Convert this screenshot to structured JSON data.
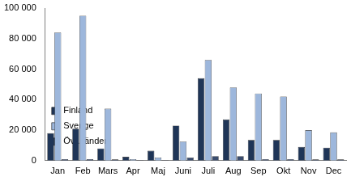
{
  "chart_data": {
    "type": "bar",
    "categories": [
      "Jan",
      "Feb",
      "Mars",
      "Apr",
      "Maj",
      "Juni",
      "Juli",
      "Aug",
      "Sep",
      "Okt",
      "Nov",
      "Dec"
    ],
    "series": [
      {
        "name": "Finland",
        "color": "#1f3557",
        "values": [
          18000,
          21000,
          8000,
          2500,
          6500,
          23000,
          54000,
          27000,
          13500,
          13500,
          9000,
          8500
        ]
      },
      {
        "name": "Sverige",
        "color": "#9db7dc",
        "values": [
          84000,
          95000,
          34000,
          1000,
          2000,
          12500,
          66000,
          48000,
          44000,
          42000,
          20000,
          18500
        ]
      },
      {
        "name": "Övr. länder",
        "color": "#3a4d6e",
        "values": [
          1000,
          1000,
          800,
          300,
          300,
          2000,
          3000,
          3000,
          1000,
          1000,
          800,
          800
        ]
      }
    ],
    "ylim": [
      0,
      100000
    ],
    "yticks": [
      {
        "value": 0,
        "label": "0"
      },
      {
        "value": 20000,
        "label": "20 000"
      },
      {
        "value": 40000,
        "label": "40 000"
      },
      {
        "value": 60000,
        "label": "60 000"
      },
      {
        "value": 80000,
        "label": "80 000"
      },
      {
        "value": 100000,
        "label": "100 000"
      }
    ],
    "grid": false,
    "legend": "upper right"
  }
}
